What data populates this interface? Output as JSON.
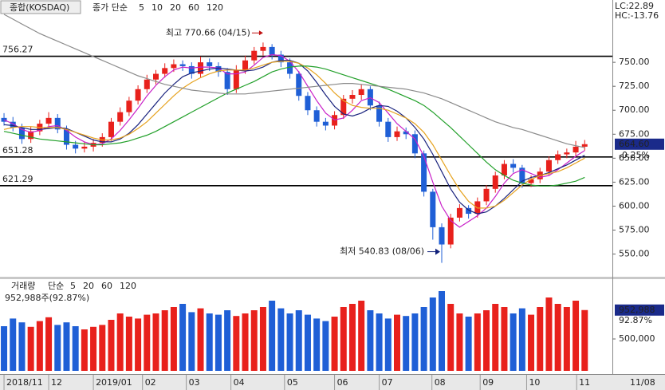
{
  "chart_data": [
    {
      "type": "candlestick",
      "title": "종합(KOSDAQ)",
      "legend_label": "종가 단순",
      "indicators": [
        {
          "label": "LC:22.89",
          "color": "#d01010"
        },
        {
          "label": "HC:-13.76",
          "color": "#1040c0"
        }
      ],
      "last_label": "664.60",
      "change_label": "-0.25%",
      "up_color": "#e8211c",
      "down_color": "#1f5fd6",
      "xlim": [
        -0.45,
        68.1
      ],
      "ylim": [
        528,
        815
      ],
      "yticks": [
        {
          "value": 550,
          "label": "550.00"
        },
        {
          "value": 575,
          "label": "575.00"
        },
        {
          "value": 600,
          "label": "600.00"
        },
        {
          "value": 625,
          "label": "625.00"
        },
        {
          "value": 650,
          "label": "650.00"
        },
        {
          "value": 675,
          "label": "675.00"
        },
        {
          "value": 700,
          "label": "700.00"
        },
        {
          "value": 725,
          "label": "725.00"
        },
        {
          "value": 750,
          "label": "750.00"
        }
      ],
      "xticks": [
        {
          "value": 0,
          "label": "2018/11"
        },
        {
          "value": 5,
          "label": "12"
        },
        {
          "value": 10,
          "label": "2019/01"
        },
        {
          "value": 15.5,
          "label": "02"
        },
        {
          "value": 20.4,
          "label": "03"
        },
        {
          "value": 25.4,
          "label": "04"
        },
        {
          "value": 31.4,
          "label": "05"
        },
        {
          "value": 37,
          "label": "06"
        },
        {
          "value": 42,
          "label": "07"
        },
        {
          "value": 47.9,
          "label": "08"
        },
        {
          "value": 53.3,
          "label": "09"
        },
        {
          "value": 58.5,
          "label": "10"
        },
        {
          "value": 64.1,
          "label": "11"
        }
      ],
      "current_date": "11/08",
      "levels": [
        {
          "value": 756.27,
          "label": "756.27"
        },
        {
          "value": 651.28,
          "label": "651.28"
        },
        {
          "value": 621.29,
          "label": "621.29"
        }
      ],
      "annotations": [
        {
          "text": "최고 770.66 (04/15)",
          "index": 29,
          "value": 770.66,
          "side": "high",
          "color": "#c01010"
        },
        {
          "text": "최저 540.83 (08/06)",
          "index": 49,
          "value": 540.83,
          "side": "low",
          "color": "#10207a"
        }
      ],
      "open": [
        692,
        688,
        682,
        670,
        678,
        686,
        692,
        680,
        664,
        660,
        662,
        666,
        672,
        688,
        698,
        710,
        722,
        732,
        738,
        744,
        748,
        746,
        738,
        750,
        746,
        740,
        722,
        742,
        752,
        762,
        766,
        758,
        750,
        738,
        715,
        700,
        688,
        684,
        695,
        712,
        716,
        722,
        705,
        688,
        672,
        678,
        675,
        655,
        615,
        578,
        560,
        588,
        598,
        592,
        605,
        618,
        632,
        644,
        640,
        624,
        628,
        636,
        648,
        654,
        656,
        662
      ],
      "high": [
        697,
        693,
        686,
        683,
        690,
        698,
        696,
        684,
        668,
        667,
        670,
        676,
        692,
        703,
        714,
        726,
        737,
        742,
        749,
        753,
        752,
        750,
        756,
        754,
        750,
        744,
        747,
        757,
        766,
        770.66,
        769,
        762,
        754,
        741,
        719,
        704,
        692,
        699,
        716,
        721,
        727,
        725,
        709,
        692,
        683,
        682,
        679,
        658,
        618,
        582,
        592,
        602,
        601,
        609,
        622,
        636,
        648,
        649,
        643,
        632,
        640,
        652,
        658,
        660,
        668,
        669
      ],
      "low": [
        684,
        678,
        665,
        666,
        674,
        682,
        676,
        659,
        655,
        656,
        657,
        662,
        668,
        684,
        694,
        706,
        718,
        727,
        734,
        740,
        741,
        733,
        734,
        741,
        735,
        716,
        718,
        738,
        748,
        757,
        753,
        745,
        733,
        710,
        695,
        683,
        679,
        680,
        691,
        707,
        711,
        700,
        683,
        667,
        668,
        670,
        650,
        610,
        565,
        540.83,
        556,
        584,
        587,
        588,
        601,
        614,
        628,
        635,
        619,
        620,
        624,
        632,
        644,
        650,
        652,
        658
      ],
      "close": [
        688,
        682,
        670,
        678,
        686,
        692,
        680,
        664,
        660,
        662,
        666,
        672,
        688,
        698,
        710,
        722,
        732,
        738,
        744,
        748,
        746,
        738,
        750,
        746,
        740,
        722,
        742,
        752,
        762,
        766,
        758,
        750,
        738,
        715,
        700,
        688,
        684,
        695,
        712,
        716,
        722,
        705,
        688,
        672,
        678,
        675,
        655,
        615,
        578,
        560,
        588,
        598,
        592,
        605,
        618,
        632,
        644,
        640,
        624,
        628,
        636,
        648,
        654,
        656,
        662,
        664.6
      ],
      "series": [
        {
          "name": "5",
          "color": "#c81fc8",
          "values": [
            690,
            686,
            680,
            677,
            679,
            683,
            684,
            679,
            672,
            667,
            664,
            665,
            670,
            679,
            690,
            702,
            715,
            726,
            735,
            742,
            745,
            744,
            745,
            745,
            744,
            738,
            738,
            740,
            747,
            755,
            758,
            757,
            751,
            740,
            725,
            710,
            697,
            690,
            692,
            700,
            710,
            713,
            708,
            697,
            686,
            678,
            670,
            652,
            625,
            600,
            585,
            578,
            584,
            590,
            598,
            610,
            624,
            634,
            638,
            634,
            630,
            632,
            638,
            645,
            652,
            658
          ]
        },
        {
          "name": "10",
          "color": "#1a237e",
          "values": [
            685,
            684,
            682,
            680,
            680,
            681,
            682,
            681,
            677,
            673,
            669,
            667,
            667,
            670,
            676,
            685,
            696,
            707,
            718,
            727,
            735,
            739,
            741,
            743,
            744,
            743,
            742,
            741,
            742,
            745,
            750,
            752,
            752,
            749,
            741,
            729,
            716,
            704,
            696,
            694,
            697,
            702,
            705,
            704,
            699,
            692,
            682,
            670,
            654,
            636,
            618,
            604,
            596,
            592,
            594,
            600,
            608,
            617,
            626,
            630,
            632,
            635,
            639,
            643,
            648,
            653
          ]
        },
        {
          "name": "20",
          "color": "#e6a21e",
          "values": [
            680,
            682,
            683,
            683,
            682,
            682,
            682,
            680,
            677,
            674,
            671,
            669,
            669,
            671,
            675,
            681,
            688,
            697,
            706,
            715,
            723,
            729,
            734,
            738,
            741,
            742,
            742,
            742,
            744,
            747,
            750,
            751,
            751,
            749,
            744,
            737,
            728,
            718,
            710,
            705,
            703,
            702,
            702,
            700,
            696,
            692,
            686,
            677,
            664,
            648,
            632,
            617,
            605,
            598,
            598,
            600,
            606,
            614,
            622,
            628,
            632,
            634,
            636,
            640,
            645,
            650
          ]
        },
        {
          "name": "60",
          "color": "#22a02a",
          "values": [
            678,
            676,
            674,
            672,
            670,
            669,
            668,
            667,
            666,
            665,
            664,
            664,
            665,
            666,
            668,
            671,
            674,
            678,
            683,
            688,
            693,
            698,
            703,
            708,
            713,
            718,
            722,
            726,
            730,
            735,
            740,
            743,
            745,
            746,
            746,
            745,
            743,
            740,
            737,
            734,
            731,
            728,
            725,
            722,
            718,
            714,
            710,
            705,
            698,
            690,
            682,
            673,
            664,
            655,
            646,
            638,
            632,
            627,
            624,
            622,
            621,
            621,
            622,
            624,
            626,
            630
          ]
        },
        {
          "name": "120",
          "color": "#8a8a8a",
          "values": [
            800,
            795,
            790,
            785,
            780,
            776,
            772,
            768,
            764,
            760,
            756,
            752,
            748,
            744,
            740,
            736,
            733,
            730,
            727,
            725,
            723,
            721,
            720,
            719,
            718,
            717,
            717,
            717,
            718,
            719,
            720,
            721,
            722,
            723,
            724,
            725,
            726,
            727,
            728,
            728,
            727,
            726,
            725,
            724,
            723,
            722,
            720,
            718,
            715,
            712,
            708,
            704,
            700,
            696,
            692,
            688,
            685,
            682,
            680,
            677,
            674,
            671,
            668,
            665,
            663,
            661
          ]
        }
      ]
    },
    {
      "type": "bar",
      "title": "거래량",
      "legend_label": "단순",
      "legend_items": [
        {
          "name": "5",
          "color": "#c81fc8"
        },
        {
          "name": "20",
          "color": "#e6a21e"
        },
        {
          "name": "60",
          "color": "#22a02a"
        },
        {
          "name": "120",
          "color": "#8a8a8a"
        }
      ],
      "summary": "952,988주(92.87%)",
      "last_label": "952,988",
      "ratio_label": "92.87%",
      "ylim": [
        0,
        1437500
      ],
      "yticks": [
        {
          "value": 500000,
          "label": "500,000"
        }
      ],
      "values": [
        700000,
        820000,
        760000,
        690000,
        780000,
        840000,
        720000,
        760000,
        700000,
        650000,
        690000,
        720000,
        800000,
        900000,
        850000,
        820000,
        880000,
        900000,
        950000,
        1000000,
        1050000,
        920000,
        980000,
        900000,
        880000,
        950000,
        860000,
        900000,
        950000,
        1000000,
        1100000,
        980000,
        900000,
        950000,
        880000,
        820000,
        780000,
        850000,
        1000000,
        1050000,
        1100000,
        950000,
        900000,
        820000,
        880000,
        860000,
        900000,
        1000000,
        1150000,
        1250000,
        1050000,
        900000,
        850000,
        900000,
        950000,
        1050000,
        1000000,
        900000,
        980000,
        880000,
        1000000,
        1150000,
        1050000,
        1000000,
        1100000,
        952988
      ]
    }
  ]
}
